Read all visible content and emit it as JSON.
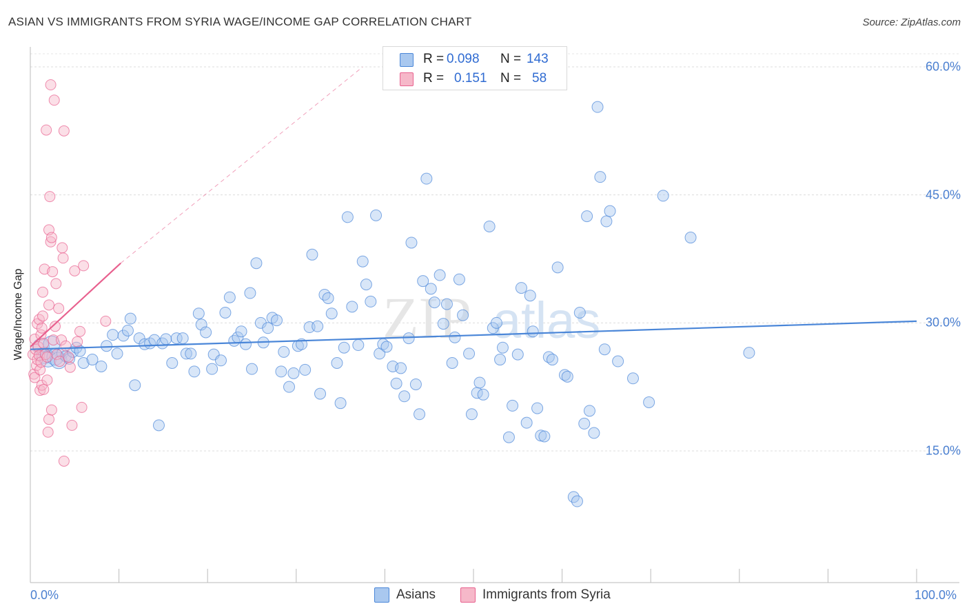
{
  "header": {
    "title": "ASIAN VS IMMIGRANTS FROM SYRIA WAGE/INCOME GAP CORRELATION CHART",
    "source": "Source: ZipAtlas.com"
  },
  "watermark": {
    "part1": "ZIP",
    "part2": "atlas"
  },
  "stats": {
    "rows": [
      {
        "r_label": "R =",
        "r_value": "0.098",
        "n_label": "N =",
        "n_value": "143",
        "color": "#a9c8ef"
      },
      {
        "r_label": "R =",
        "r_value": "0.151",
        "n_label": "N =",
        "n_value": "58",
        "color": "#f6b8c9"
      }
    ]
  },
  "legend": {
    "items": [
      {
        "label": "Asians",
        "color": "#a9c8ef"
      },
      {
        "label": "Immigrants from Syria",
        "color": "#f6b8c9"
      }
    ]
  },
  "chart_data": {
    "type": "scatter",
    "title": "ASIAN VS IMMIGRANTS FROM SYRIA WAGE/INCOME GAP CORRELATION CHART",
    "xlabel": "",
    "ylabel": "Wage/Income Gap",
    "xlim": [
      0,
      100
    ],
    "ylim": [
      0,
      64
    ],
    "x_tick_labels": [
      "0.0%",
      "100.0%"
    ],
    "y_ticks": [
      15,
      30,
      45,
      60
    ],
    "y_tick_labels": [
      "15.0%",
      "30.0%",
      "45.0%",
      "60.0%"
    ],
    "grid": true,
    "series": [
      {
        "name": "Asians",
        "color": "#4a86d8",
        "fill": "#a9c8ef",
        "trend": {
          "x": [
            0,
            100
          ],
          "y": [
            26.9,
            30.2
          ]
        },
        "points": [
          [
            1.2,
            27.2
          ],
          [
            1.6,
            26.2
          ],
          [
            2.0,
            25.8
          ],
          [
            2.4,
            27.5
          ],
          [
            2.8,
            26.0
          ],
          [
            3.2,
            25.6
          ],
          [
            3.6,
            26.4
          ],
          [
            4.0,
            26.1
          ],
          [
            4.4,
            25.8
          ],
          [
            4.8,
            26.6
          ],
          [
            5.2,
            27.1
          ],
          [
            5.6,
            26.7
          ],
          [
            6.0,
            25.3
          ],
          [
            7.0,
            25.7
          ],
          [
            8.0,
            24.9
          ],
          [
            8.6,
            27.3
          ],
          [
            9.3,
            28.6
          ],
          [
            9.8,
            26.4
          ],
          [
            10.5,
            28.5
          ],
          [
            11.0,
            29.1
          ],
          [
            11.3,
            30.5
          ],
          [
            11.8,
            22.7
          ],
          [
            12.3,
            28.2
          ],
          [
            12.9,
            27.5
          ],
          [
            13.5,
            27.6
          ],
          [
            14.0,
            28.0
          ],
          [
            14.5,
            18.0
          ],
          [
            14.9,
            27.6
          ],
          [
            15.3,
            28.1
          ],
          [
            16.0,
            25.3
          ],
          [
            16.5,
            28.2
          ],
          [
            17.2,
            28.2
          ],
          [
            17.6,
            26.4
          ],
          [
            18.1,
            26.4
          ],
          [
            18.5,
            24.3
          ],
          [
            19.0,
            31.1
          ],
          [
            19.3,
            29.8
          ],
          [
            19.8,
            28.9
          ],
          [
            20.5,
            24.6
          ],
          [
            20.7,
            26.3
          ],
          [
            21.5,
            25.6
          ],
          [
            22.0,
            31.2
          ],
          [
            22.5,
            33.0
          ],
          [
            23.0,
            27.9
          ],
          [
            23.4,
            28.3
          ],
          [
            23.8,
            29.0
          ],
          [
            24.3,
            27.5
          ],
          [
            24.8,
            33.5
          ],
          [
            25.0,
            24.6
          ],
          [
            25.5,
            37.0
          ],
          [
            26.0,
            30.0
          ],
          [
            26.3,
            27.7
          ],
          [
            26.8,
            29.4
          ],
          [
            27.3,
            30.6
          ],
          [
            27.8,
            30.3
          ],
          [
            28.3,
            24.3
          ],
          [
            28.6,
            26.6
          ],
          [
            29.2,
            22.5
          ],
          [
            29.7,
            24.1
          ],
          [
            30.2,
            27.3
          ],
          [
            30.6,
            27.5
          ],
          [
            31.0,
            24.5
          ],
          [
            31.5,
            29.5
          ],
          [
            31.8,
            38.0
          ],
          [
            32.4,
            29.6
          ],
          [
            32.7,
            21.7
          ],
          [
            33.2,
            33.3
          ],
          [
            33.6,
            32.9
          ],
          [
            34.0,
            31.1
          ],
          [
            34.6,
            25.3
          ],
          [
            35.0,
            20.6
          ],
          [
            35.4,
            27.1
          ],
          [
            35.8,
            42.4
          ],
          [
            36.3,
            31.9
          ],
          [
            37.0,
            27.4
          ],
          [
            37.5,
            37.2
          ],
          [
            37.9,
            34.5
          ],
          [
            38.4,
            32.5
          ],
          [
            39.0,
            42.6
          ],
          [
            39.4,
            26.4
          ],
          [
            39.8,
            27.5
          ],
          [
            40.2,
            27.2
          ],
          [
            40.9,
            24.9
          ],
          [
            41.3,
            22.9
          ],
          [
            41.8,
            24.7
          ],
          [
            42.2,
            21.4
          ],
          [
            42.7,
            28.2
          ],
          [
            43.0,
            39.4
          ],
          [
            43.5,
            22.8
          ],
          [
            43.9,
            19.3
          ],
          [
            44.3,
            34.9
          ],
          [
            44.7,
            46.9
          ],
          [
            45.2,
            34.0
          ],
          [
            45.6,
            32.4
          ],
          [
            46.2,
            35.6
          ],
          [
            46.6,
            29.9
          ],
          [
            47.0,
            32.2
          ],
          [
            47.6,
            25.3
          ],
          [
            47.9,
            28.3
          ],
          [
            48.4,
            35.1
          ],
          [
            48.8,
            30.9
          ],
          [
            49.5,
            26.4
          ],
          [
            49.8,
            19.3
          ],
          [
            50.4,
            21.8
          ],
          [
            50.7,
            23.0
          ],
          [
            51.1,
            21.6
          ],
          [
            51.8,
            41.3
          ],
          [
            52.2,
            29.4
          ],
          [
            52.6,
            30.0
          ],
          [
            53.0,
            25.7
          ],
          [
            53.3,
            27.1
          ],
          [
            54.0,
            16.6
          ],
          [
            54.4,
            20.3
          ],
          [
            55.0,
            26.3
          ],
          [
            55.4,
            34.1
          ],
          [
            56.0,
            18.3
          ],
          [
            56.4,
            33.2
          ],
          [
            56.7,
            29.0
          ],
          [
            57.2,
            20.0
          ],
          [
            57.6,
            16.8
          ],
          [
            58.0,
            16.7
          ],
          [
            58.5,
            26.0
          ],
          [
            58.9,
            25.7
          ],
          [
            59.5,
            36.5
          ],
          [
            60.3,
            23.9
          ],
          [
            60.6,
            23.7
          ],
          [
            61.3,
            9.6
          ],
          [
            61.7,
            9.1
          ],
          [
            62.0,
            31.2
          ],
          [
            62.5,
            18.2
          ],
          [
            62.8,
            42.5
          ],
          [
            63.1,
            19.7
          ],
          [
            63.6,
            17.1
          ],
          [
            64.0,
            55.3
          ],
          [
            64.3,
            47.1
          ],
          [
            64.8,
            26.9
          ],
          [
            65.0,
            41.9
          ],
          [
            65.4,
            43.1
          ],
          [
            66.3,
            25.5
          ],
          [
            68.0,
            23.5
          ],
          [
            69.8,
            20.7
          ],
          [
            71.4,
            44.9
          ],
          [
            74.5,
            40.0
          ],
          [
            81.1,
            26.5
          ]
        ]
      },
      {
        "name": "Immigrants from Syria",
        "color": "#e8608e",
        "fill": "#f6b8c9",
        "trend": {
          "x": [
            0,
            10.2
          ],
          "y": [
            27.2,
            37.0
          ]
        },
        "trend_dashed": {
          "x": [
            10.2,
            37.5
          ],
          "y": [
            37.0,
            60.0
          ]
        },
        "points": [
          [
            0.3,
            26.3
          ],
          [
            0.4,
            24.0
          ],
          [
            0.5,
            28.1
          ],
          [
            0.5,
            23.6
          ],
          [
            0.6,
            26.9
          ],
          [
            0.7,
            25.0
          ],
          [
            0.8,
            29.9
          ],
          [
            0.8,
            25.7
          ],
          [
            0.9,
            27.2
          ],
          [
            1.0,
            30.4
          ],
          [
            1.0,
            26.2
          ],
          [
            1.1,
            22.1
          ],
          [
            1.1,
            24.5
          ],
          [
            1.2,
            28.6
          ],
          [
            1.2,
            25.4
          ],
          [
            1.3,
            29.4
          ],
          [
            1.3,
            22.7
          ],
          [
            1.4,
            30.8
          ],
          [
            1.4,
            33.6
          ],
          [
            1.5,
            22.2
          ],
          [
            1.5,
            27.6
          ],
          [
            1.6,
            36.3
          ],
          [
            1.7,
            26.3
          ],
          [
            1.8,
            52.6
          ],
          [
            1.9,
            23.3
          ],
          [
            1.9,
            26.0
          ],
          [
            2.0,
            17.2
          ],
          [
            2.1,
            40.9
          ],
          [
            2.1,
            18.7
          ],
          [
            2.1,
            32.1
          ],
          [
            2.2,
            44.8
          ],
          [
            2.3,
            57.9
          ],
          [
            2.3,
            39.5
          ],
          [
            2.4,
            19.8
          ],
          [
            2.4,
            40.0
          ],
          [
            2.5,
            36.0
          ],
          [
            2.6,
            28.0
          ],
          [
            2.7,
            56.1
          ],
          [
            2.8,
            29.6
          ],
          [
            2.9,
            34.6
          ],
          [
            3.0,
            26.3
          ],
          [
            3.2,
            31.7
          ],
          [
            3.3,
            25.5
          ],
          [
            3.5,
            28.0
          ],
          [
            3.6,
            38.8
          ],
          [
            3.7,
            37.6
          ],
          [
            3.8,
            13.8
          ],
          [
            3.8,
            52.5
          ],
          [
            4.0,
            27.3
          ],
          [
            4.3,
            26.0
          ],
          [
            4.5,
            24.8
          ],
          [
            4.7,
            18.0
          ],
          [
            5.0,
            36.1
          ],
          [
            5.3,
            27.8
          ],
          [
            5.6,
            29.0
          ],
          [
            5.8,
            20.1
          ],
          [
            6.0,
            36.7
          ],
          [
            8.5,
            30.2
          ]
        ]
      }
    ]
  }
}
